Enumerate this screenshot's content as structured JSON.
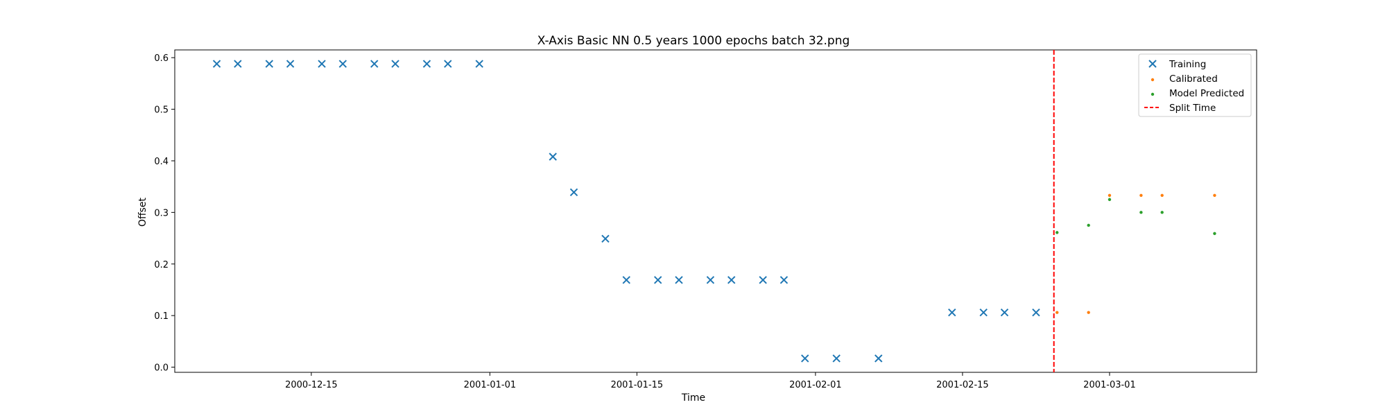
{
  "chart_data": {
    "type": "scatter",
    "title": "X-Axis Basic NN 0.5 years 1000 epochs batch 32.png",
    "xlabel": "Time",
    "ylabel": "Offset",
    "xlim": [
      "2000-12-02",
      "2001-03-15"
    ],
    "ylim": [
      -0.01,
      0.615
    ],
    "x_ticks": [
      "2000-12-15",
      "2001-01-01",
      "2001-01-15",
      "2001-02-01",
      "2001-02-15",
      "2001-03-01"
    ],
    "y_ticks": [
      0.0,
      0.1,
      0.2,
      0.3,
      0.4,
      0.5,
      0.6
    ],
    "grid": false,
    "legend_position": "top-right",
    "series": [
      {
        "name": "Training",
        "marker": "x",
        "color": "#1f77b4",
        "points": [
          [
            "2000-12-06",
            0.588
          ],
          [
            "2000-12-08",
            0.588
          ],
          [
            "2000-12-11",
            0.588
          ],
          [
            "2000-12-13",
            0.588
          ],
          [
            "2000-12-16",
            0.588
          ],
          [
            "2000-12-18",
            0.588
          ],
          [
            "2000-12-21",
            0.588
          ],
          [
            "2000-12-23",
            0.588
          ],
          [
            "2000-12-26",
            0.588
          ],
          [
            "2000-12-28",
            0.588
          ],
          [
            "2000-12-31",
            0.588
          ],
          [
            "2001-01-07",
            0.408
          ],
          [
            "2001-01-09",
            0.339
          ],
          [
            "2001-01-12",
            0.249
          ],
          [
            "2001-01-14",
            0.169
          ],
          [
            "2001-01-17",
            0.169
          ],
          [
            "2001-01-19",
            0.169
          ],
          [
            "2001-01-22",
            0.169
          ],
          [
            "2001-01-24",
            0.169
          ],
          [
            "2001-01-27",
            0.169
          ],
          [
            "2001-01-29",
            0.169
          ],
          [
            "2001-01-31",
            0.017
          ],
          [
            "2001-02-03",
            0.017
          ],
          [
            "2001-02-07",
            0.017
          ],
          [
            "2001-02-14",
            0.106
          ],
          [
            "2001-02-17",
            0.106
          ],
          [
            "2001-02-19",
            0.106
          ],
          [
            "2001-02-22",
            0.106
          ]
        ]
      },
      {
        "name": "Calibrated",
        "marker": "dot",
        "color": "#ff7f0e",
        "points": [
          [
            "2001-02-24",
            0.106
          ],
          [
            "2001-02-27",
            0.106
          ],
          [
            "2001-03-01",
            0.333
          ],
          [
            "2001-03-04",
            0.333
          ],
          [
            "2001-03-06",
            0.333
          ],
          [
            "2001-03-11",
            0.333
          ]
        ]
      },
      {
        "name": "Model Predicted",
        "marker": "dot",
        "color": "#2ca02c",
        "points": [
          [
            "2001-02-24",
            0.261
          ],
          [
            "2001-02-27",
            0.275
          ],
          [
            "2001-03-01",
            0.325
          ],
          [
            "2001-03-04",
            0.3
          ],
          [
            "2001-03-06",
            0.3
          ],
          [
            "2001-03-11",
            0.259
          ]
        ]
      }
    ],
    "split_line": {
      "name": "Split Time",
      "x": "2001-02-23.7",
      "color": "#ff0000",
      "style": "dashed"
    }
  }
}
